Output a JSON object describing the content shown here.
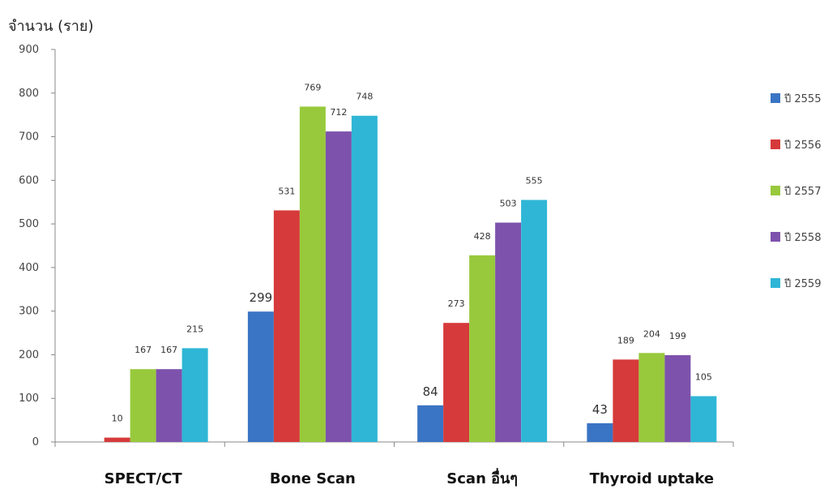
{
  "chart_data": {
    "type": "bar",
    "ylabel": "จำนวน (ราย)",
    "xlabel": "",
    "ylim": [
      0,
      900
    ],
    "yticks": [
      0,
      100,
      200,
      300,
      400,
      500,
      600,
      700,
      800,
      900
    ],
    "categories": [
      "SPECT/CT",
      "Bone Scan",
      "Scan อื่นๆ",
      "Thyroid uptake"
    ],
    "series": [
      {
        "name": "ปี 2555",
        "color": "#3a74c4",
        "values": [
          0,
          299,
          84,
          43
        ],
        "labels": [
          "",
          "299",
          "84",
          "43"
        ]
      },
      {
        "name": "ปี 2556",
        "color": "#d63a3a",
        "values": [
          10,
          531,
          273,
          189
        ],
        "labels": [
          "10",
          "531",
          "273",
          "189"
        ]
      },
      {
        "name": "ปี 2557",
        "color": "#98c93c",
        "values": [
          167,
          769,
          428,
          204
        ],
        "labels": [
          "167",
          "769",
          "428",
          "204"
        ]
      },
      {
        "name": "ปี 2558",
        "color": "#7d52ac",
        "values": [
          167,
          712,
          503,
          199
        ],
        "labels": [
          "167",
          "712",
          "503",
          "199"
        ]
      },
      {
        "name": "ปี 2559",
        "color": "#2fb6d6",
        "values": [
          215,
          748,
          555,
          105
        ],
        "labels": [
          "215",
          "748",
          "555",
          "105"
        ]
      }
    ],
    "large_labels": {
      "series": 0
    },
    "legend": "right",
    "grid": false
  }
}
